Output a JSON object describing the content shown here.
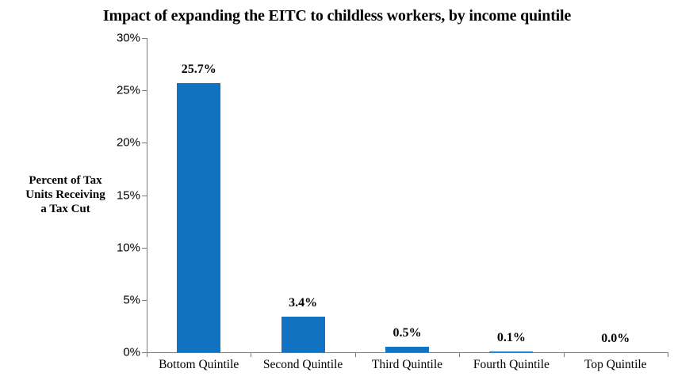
{
  "chart_data": {
    "type": "bar",
    "title": "Impact of expanding the EITC to childless workers, by income quintile",
    "ylabel_lines": [
      "Percent of Tax",
      "Units Receiving",
      "a Tax Cut"
    ],
    "categories": [
      "Bottom Quintile",
      "Second Quintile",
      "Third Quintile",
      "Fourth Quintile",
      "Top Quintile"
    ],
    "values": [
      25.7,
      3.4,
      0.5,
      0.1,
      0.0
    ],
    "bar_labels": [
      "25.7%",
      "3.4%",
      "0.5%",
      "0.1%",
      "0.0%"
    ],
    "ytick_labels": [
      "0%",
      "5%",
      "10%",
      "15%",
      "20%",
      "25%",
      "30%"
    ],
    "ytick_values": [
      0,
      5,
      10,
      15,
      20,
      25,
      30
    ],
    "ylim": [
      0,
      30
    ],
    "xlabel": "",
    "grid": false,
    "legend": null,
    "bar_color": "#1272c2",
    "axis_color": "#7a7a7a",
    "text_color": "#000000",
    "background_color": "#ffffff"
  }
}
